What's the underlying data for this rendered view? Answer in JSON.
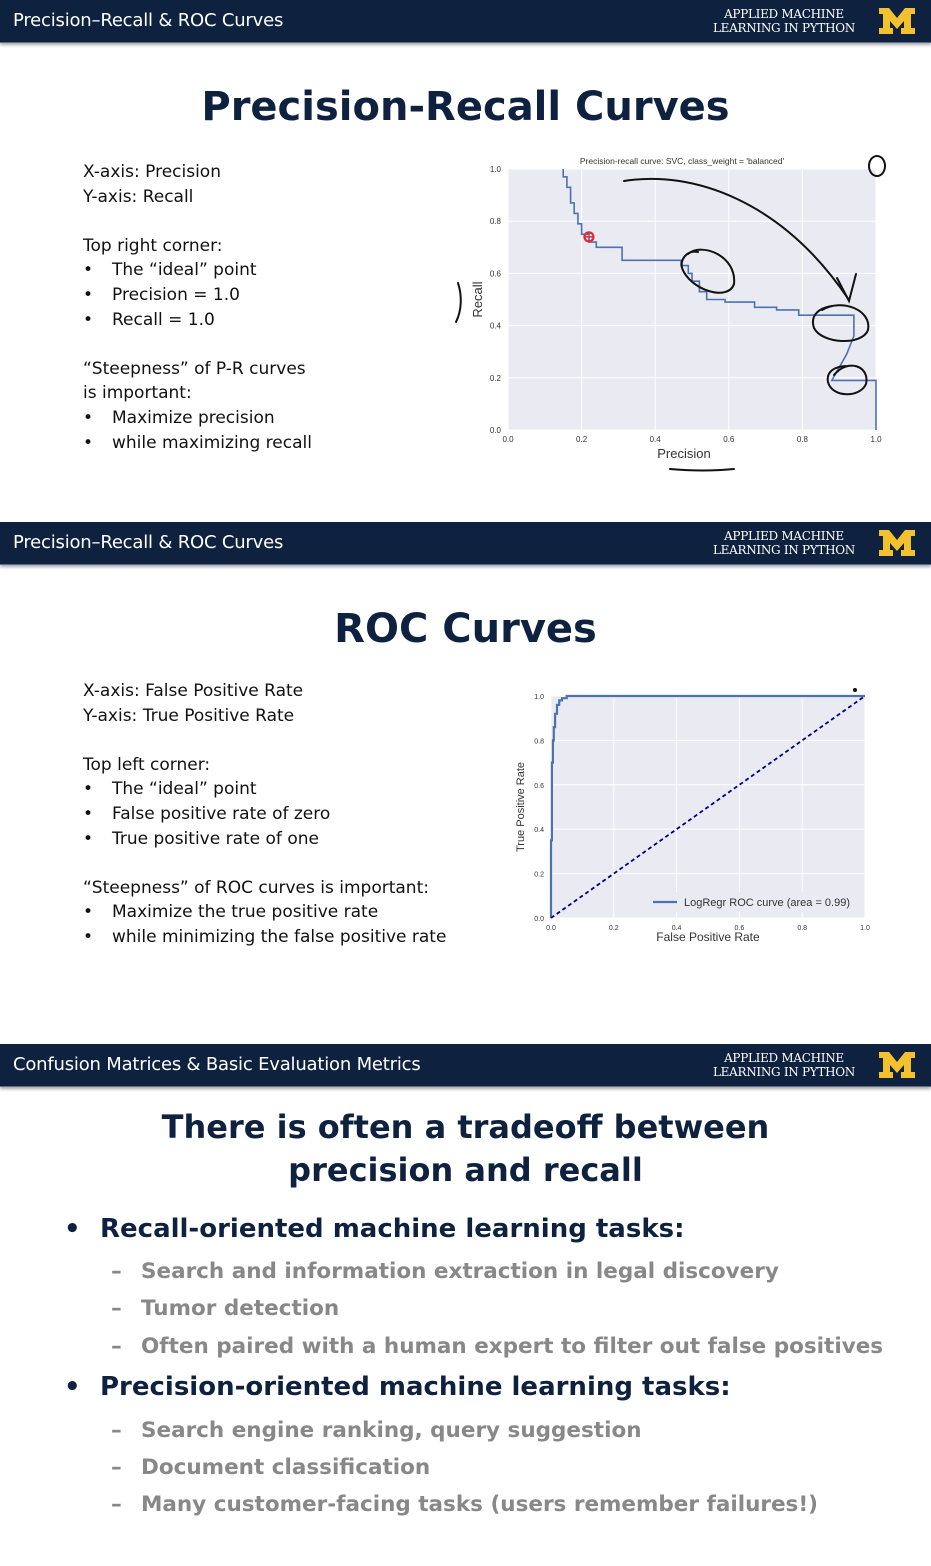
{
  "brand": {
    "line1": "APPLIED MACHINE",
    "line2": "LEARNING IN PYTHON",
    "logo_letter": "M",
    "logo_color": "#f4c12e"
  },
  "colors": {
    "header_bg": "#0e2240",
    "title": "#0e2240",
    "curve": "#4c72b0",
    "plot_bg": "#eaeaf2",
    "marker": "#e8292f",
    "sub_bullet": "#888888"
  },
  "slide1": {
    "header": "Precision–Recall & ROC Curves",
    "title": "Precision-Recall Curves",
    "lines": [
      "X-axis:  Precision",
      "Y-axis:  Recall",
      "",
      "Top right corner:",
      "•|The “ideal” point",
      "•|Precision = 1.0",
      "•|Recall = 1.0",
      "",
      "“Steepness” of P-R curves",
      "is important:",
      "•|Maximize precision",
      "•|while maximizing recall"
    ]
  },
  "slide2": {
    "header": "Precision–Recall & ROC Curves",
    "title": "ROC Curves",
    "lines": [
      "X-axis:  False Positive Rate",
      "Y-axis:  True Positive Rate",
      "",
      "Top left corner:",
      "•|The “ideal” point",
      "•|False positive rate of zero",
      "•|True positive rate of one",
      "",
      "“Steepness” of ROC curves is important:",
      "•|Maximize the true positive rate",
      "•|while minimizing the false positive rate"
    ]
  },
  "slide3": {
    "header": "Confusion Matrices & Basic Evaluation Metrics",
    "title_line1": "There is often a tradeoff between",
    "title_line2": "precision and recall",
    "bullets": [
      {
        "marker": "•",
        "text": "Recall-oriented machine learning tasks:",
        "level": 1
      },
      {
        "marker": "–",
        "text": "Search and information extraction in legal discovery",
        "level": 2
      },
      {
        "marker": "–",
        "text": "Tumor detection",
        "level": 2
      },
      {
        "marker": "–",
        "text": "Often paired with a human expert to filter out false positives",
        "level": 2
      },
      {
        "marker": "•",
        "text": "Precision-oriented machine learning tasks:",
        "level": 1
      },
      {
        "marker": "–",
        "text": "Search engine ranking, query suggestion",
        "level": 2
      },
      {
        "marker": "–",
        "text": "Document classification",
        "level": 2
      },
      {
        "marker": "–",
        "text": "Many customer-facing tasks (users remember failures!)",
        "level": 2
      }
    ]
  },
  "chart_data": [
    {
      "type": "line",
      "title": "Precision-recall curve: SVC, class_weight = 'balanced'",
      "xlabel": "Precision",
      "ylabel": "Recall",
      "xlim": [
        0.0,
        1.0
      ],
      "ylim": [
        0.0,
        1.0
      ],
      "xticks": [
        "0.0",
        "0.2",
        "0.4",
        "0.6",
        "0.8",
        "1.0"
      ],
      "yticks": [
        "0.0",
        "0.2",
        "0.4",
        "0.6",
        "0.8",
        "1.0"
      ],
      "grid": true,
      "series": [
        {
          "x": [
            0.15,
            0.15,
            0.16,
            0.16,
            0.17,
            0.17,
            0.18,
            0.18,
            0.19,
            0.19,
            0.2,
            0.2,
            0.22,
            0.22,
            0.24,
            0.24,
            0.31,
            0.31,
            0.47,
            0.47,
            0.49,
            0.49,
            0.5,
            0.5,
            0.52,
            0.52,
            0.54,
            0.54,
            0.59,
            0.59,
            0.67,
            0.67,
            0.73,
            0.73,
            0.79,
            0.79,
            0.94,
            0.94,
            0.92,
            0.9,
            0.88,
            0.88,
            1.0,
            1.0
          ],
          "y": [
            1.0,
            0.97,
            0.97,
            0.93,
            0.93,
            0.87,
            0.87,
            0.83,
            0.83,
            0.79,
            0.79,
            0.75,
            0.75,
            0.72,
            0.72,
            0.7,
            0.7,
            0.65,
            0.65,
            0.63,
            0.63,
            0.6,
            0.6,
            0.57,
            0.57,
            0.53,
            0.53,
            0.5,
            0.5,
            0.49,
            0.49,
            0.47,
            0.47,
            0.46,
            0.46,
            0.44,
            0.44,
            0.36,
            0.29,
            0.24,
            0.19,
            0.19,
            0.19,
            0.0
          ]
        }
      ],
      "highlight_point": {
        "x": 0.22,
        "y": 0.74
      }
    },
    {
      "type": "line",
      "title": "",
      "xlabel": "False Positive Rate",
      "ylabel": "True Positive Rate",
      "xlim": [
        0.0,
        1.0
      ],
      "ylim": [
        0.0,
        1.0
      ],
      "xticks": [
        "0.0",
        "0.2",
        "0.4",
        "0.6",
        "0.8",
        "1.0"
      ],
      "yticks": [
        "0.0",
        "0.2",
        "0.4",
        "0.6",
        "0.8",
        "1.0"
      ],
      "grid": true,
      "legend": "bottom-right",
      "series": [
        {
          "name": "LogRegr ROC curve (area = 0.99)",
          "x": [
            0.0,
            0.0,
            0.003,
            0.003,
            0.006,
            0.006,
            0.009,
            0.009,
            0.013,
            0.013,
            0.019,
            0.019,
            0.026,
            0.026,
            0.035,
            0.035,
            0.05,
            0.05,
            1.0
          ],
          "y": [
            0.0,
            0.35,
            0.35,
            0.7,
            0.7,
            0.8,
            0.8,
            0.86,
            0.86,
            0.92,
            0.92,
            0.96,
            0.96,
            0.98,
            0.98,
            0.99,
            0.99,
            1.0,
            1.0
          ]
        },
        {
          "x": [
            0.0,
            1.0
          ],
          "y": [
            0.0,
            1.0
          ]
        }
      ]
    }
  ]
}
